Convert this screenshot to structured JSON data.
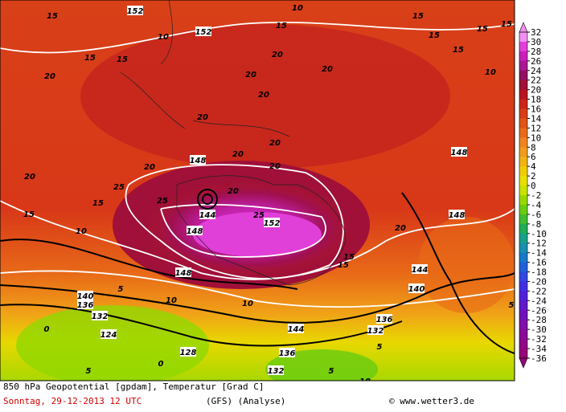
{
  "map": {
    "labels": [
      "15",
      "152",
      "10",
      "15",
      "10",
      "152",
      "15",
      "15",
      "15",
      "15",
      "15",
      "10",
      "15",
      "15",
      "20",
      "20",
      "20",
      "20",
      "20",
      "20",
      "20",
      "20",
      "148",
      "20",
      "148",
      "20",
      "25",
      "144",
      "20",
      "25",
      "152",
      "148",
      "148",
      "25",
      "15",
      "20",
      "15",
      "148",
      "20",
      "15",
      "10",
      "10",
      "10",
      "144",
      "140",
      "140",
      "5",
      "136",
      "132",
      "124",
      "128",
      "136",
      "132",
      "132",
      "144",
      "136",
      "5",
      "0",
      "5",
      "0",
      "5",
      "10",
      "5",
      "15"
    ]
  },
  "colorbar": {
    "ticks": [
      32,
      30,
      28,
      26,
      24,
      22,
      20,
      18,
      16,
      14,
      12,
      10,
      8,
      6,
      4,
      2,
      0,
      -2,
      -4,
      -6,
      -8,
      -10,
      -12,
      -14,
      -16,
      -18,
      -20,
      -22,
      -24,
      -26,
      -28,
      -30,
      -32,
      -34,
      -36
    ],
    "colors": [
      "#f090f0",
      "#e040d8",
      "#c820b8",
      "#a81890",
      "#901060",
      "#a01038",
      "#b81420",
      "#cc2418",
      "#d83c14",
      "#e05414",
      "#e86a18",
      "#f08420",
      "#f09c1c",
      "#f0b414",
      "#f0cc08",
      "#e8e000",
      "#c8e400",
      "#98d800",
      "#68cc10",
      "#40bc30",
      "#20ac58",
      "#18a088",
      "#1890b0",
      "#1878c8",
      "#2060d8",
      "#3048e0",
      "#4030e0",
      "#5020d8",
      "#6018c8",
      "#7010b8",
      "#8010a8",
      "#880c98",
      "#900888",
      "#980478"
    ]
  },
  "footer": {
    "line1": "850 hPa Geopotential [gpdam], Temperatur [Grad C]",
    "date": "Sonntag, 29-12-2013  12 UTC",
    "model": "(GFS)  (Analyse)",
    "copyright": "© www.wetter3.de"
  }
}
